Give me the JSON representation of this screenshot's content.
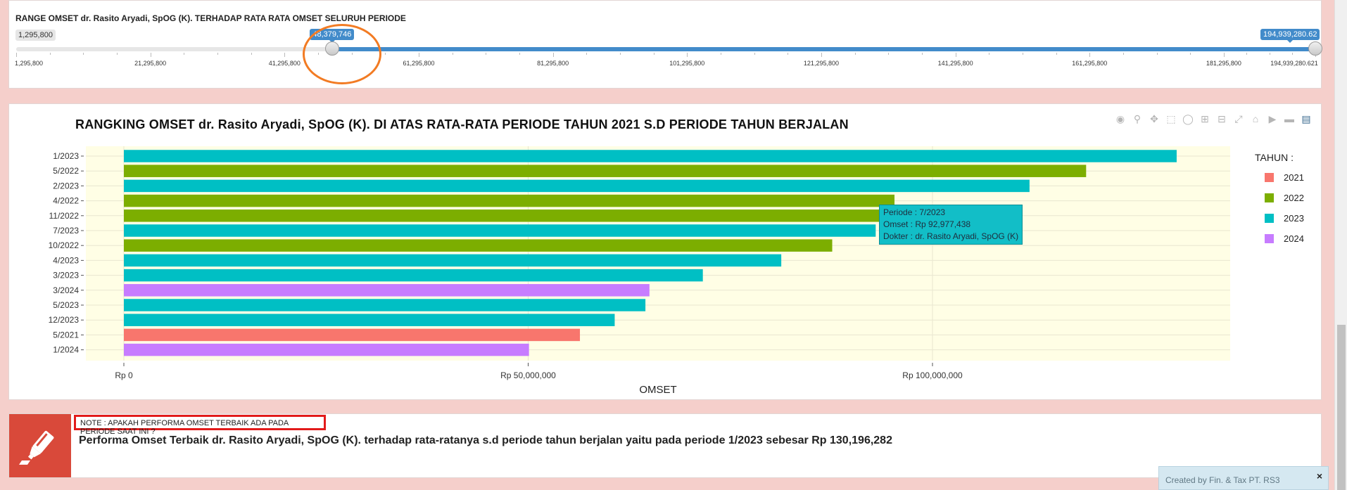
{
  "range": {
    "title": "RANGE OMSET dr. Rasito Aryadi, SpOG (K). TERHADAP RATA RATA OMSET SELURUH PERIODE",
    "min_label": "1,295,800",
    "from_value": 48379746,
    "from_label": "48,379,746",
    "to_label": "194,939,280.62",
    "min": 1295800,
    "max": 194939280.62,
    "grid": [
      {
        "value": 1295800,
        "label": "1,295,800"
      },
      {
        "value": 21295800,
        "label": "21,295,800"
      },
      {
        "value": 41295800,
        "label": "41,295,800"
      },
      {
        "value": 61295800,
        "label": "61,295,800"
      },
      {
        "value": 81295800,
        "label": "81,295,800"
      },
      {
        "value": 101295800,
        "label": "101,295,800"
      },
      {
        "value": 121295800,
        "label": "121,295,800"
      },
      {
        "value": 141295800,
        "label": "141,295,800"
      },
      {
        "value": 161295800,
        "label": "161,295,800"
      },
      {
        "value": 181295800,
        "label": "181,295,800"
      },
      {
        "value": 194939280.621,
        "label": "194,939,280.621"
      }
    ]
  },
  "chart_data": {
    "type": "bar",
    "orientation": "horizontal",
    "title": "RANGKING OMSET dr. Rasito Aryadi, SpOG (K). DI ATAS RATA-RATA PERIODE TAHUN 2021 S.D PERIODE TAHUN BERJALAN",
    "xlabel": "OMSET",
    "ylabel": "",
    "xlim": [
      0,
      137000000
    ],
    "x_ticks": [
      {
        "value": 0,
        "label": "Rp 0"
      },
      {
        "value": 50000000,
        "label": "Rp 50,000,000"
      },
      {
        "value": 100000000,
        "label": "Rp 100,000,000"
      }
    ],
    "grid": true,
    "legend_title": "TAHUN :",
    "legend_position": "right",
    "series": [
      {
        "name": "2021",
        "color": "#f8766d"
      },
      {
        "name": "2022",
        "color": "#7cae00"
      },
      {
        "name": "2023",
        "color": "#00bfc4"
      },
      {
        "name": "2024",
        "color": "#c77cff"
      }
    ],
    "bars": [
      {
        "category": "1/2023",
        "year": "2023",
        "value": 130196282
      },
      {
        "category": "5/2022",
        "year": "2022",
        "value": 119000000
      },
      {
        "category": "2/2023",
        "year": "2023",
        "value": 112000000
      },
      {
        "category": "4/2022",
        "year": "2022",
        "value": 95300000
      },
      {
        "category": "11/2022",
        "year": "2022",
        "value": 93500000
      },
      {
        "category": "7/2023",
        "year": "2023",
        "value": 92977438
      },
      {
        "category": "10/2022",
        "year": "2022",
        "value": 87600000
      },
      {
        "category": "4/2023",
        "year": "2023",
        "value": 81300000
      },
      {
        "category": "3/2023",
        "year": "2023",
        "value": 71600000
      },
      {
        "category": "3/2024",
        "year": "2024",
        "value": 65000000
      },
      {
        "category": "5/2023",
        "year": "2023",
        "value": 64500000
      },
      {
        "category": "12/2023",
        "year": "2023",
        "value": 60700000
      },
      {
        "category": "5/2021",
        "year": "2021",
        "value": 56400000
      },
      {
        "category": "1/2024",
        "year": "2024",
        "value": 50100000
      }
    ]
  },
  "tooltip": {
    "line1": "Periode : 7/2023",
    "line2": "Omset : Rp 92,977,438",
    "line3": "Dokter : dr. Rasito Aryadi, SpOG (K)"
  },
  "modebar_icons": [
    "camera-icon",
    "zoom-icon",
    "pan-icon",
    "box-select-icon",
    "lasso-icon",
    "zoom-in-icon",
    "zoom-out-icon",
    "autoscale-icon",
    "reset-axes-icon",
    "spike-lines-icon",
    "compare-hover-icon",
    "plotly-logo-icon"
  ],
  "note": {
    "label": "NOTE : APAKAH PERFORMA OMSET TERBAIK ADA PADA PERIODE SAAT INI ?",
    "text": "Performa Omset Terbaik dr. Rasito Aryadi, SpOG (K). terhadap rata-ratanya s.d periode tahun berjalan yaitu pada periode 1/2023 sebesar Rp 130,196,282",
    "icon": "highlighter-icon"
  },
  "credit": {
    "text": "Created by Fin. & Tax PT. RS3",
    "close": "×"
  }
}
